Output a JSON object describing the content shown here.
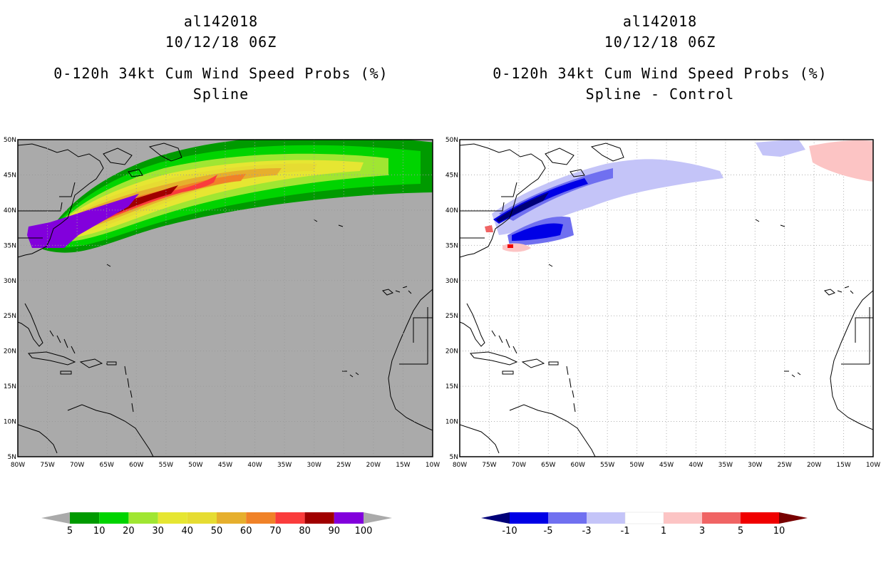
{
  "left_panel": {
    "title_line1": "al142018",
    "title_line2": "10/12/18 06Z",
    "title_line3": "0-120h 34kt Cum Wind Speed Probs (%)",
    "title_line4": "Spline"
  },
  "right_panel": {
    "title_line1": "al142018",
    "title_line2": "10/12/18 06Z",
    "title_line3": "0-120h 34kt Cum Wind Speed Probs (%)",
    "title_line4": "Spline - Control"
  },
  "axes": {
    "lat_labels": [
      "50N",
      "45N",
      "40N",
      "35N",
      "30N",
      "25N",
      "20N",
      "15N",
      "10N",
      "5N"
    ],
    "lon_labels": [
      "80W",
      "75W",
      "70W",
      "65W",
      "60W",
      "55W",
      "50W",
      "45W",
      "40W",
      "35W",
      "30W",
      "25W",
      "20W",
      "15W",
      "10W"
    ]
  },
  "colors": {
    "land_gray": "#aaaaaa",
    "prob_ramp": [
      "#009a00",
      "#00d400",
      "#a0e632",
      "#e6e632",
      "#e6dc32",
      "#e6af2d",
      "#f08228",
      "#fa3c3c",
      "#a00000",
      "#8200dc"
    ],
    "diff_ramp": [
      "#000078",
      "#0000e6",
      "#7070f0",
      "#c4c4f8",
      "#ffffff",
      "#fcc4c4",
      "#f06464",
      "#f00000",
      "#780000"
    ]
  },
  "legend_left": {
    "labels": [
      "5",
      "10",
      "20",
      "30",
      "40",
      "50",
      "60",
      "70",
      "80",
      "90",
      "100"
    ]
  },
  "legend_right": {
    "labels": [
      "-10",
      "-5",
      "-3",
      "-1",
      "1",
      "3",
      "5",
      "10"
    ]
  }
}
